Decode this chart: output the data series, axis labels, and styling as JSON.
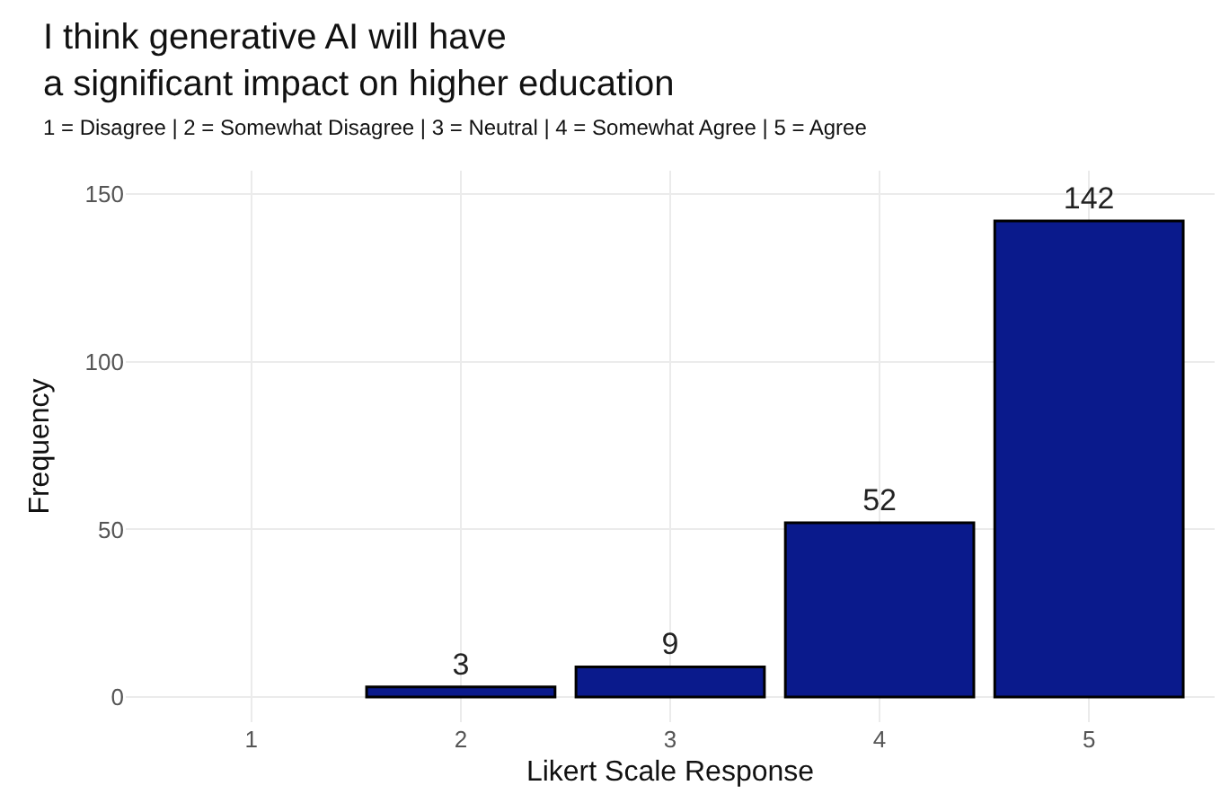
{
  "chart_data": {
    "type": "bar",
    "title": "I think generative AI will have\na significant impact on higher education",
    "subtitle": "1 = Disagree | 2 = Somewhat Disagree | 3 = Neutral | 4 = Somewhat Agree | 5 = Agree",
    "xlabel": "Likert Scale Response",
    "ylabel": "Frequency",
    "categories": [
      "1",
      "2",
      "3",
      "4",
      "5"
    ],
    "values": [
      0,
      3,
      9,
      52,
      142
    ],
    "value_labels": [
      null,
      "3",
      "9",
      "52",
      "142"
    ],
    "color": "#0a1a8c",
    "ylim": [
      -7.5,
      157
    ],
    "yticks": [
      0,
      50,
      100,
      150
    ],
    "grid": true
  }
}
